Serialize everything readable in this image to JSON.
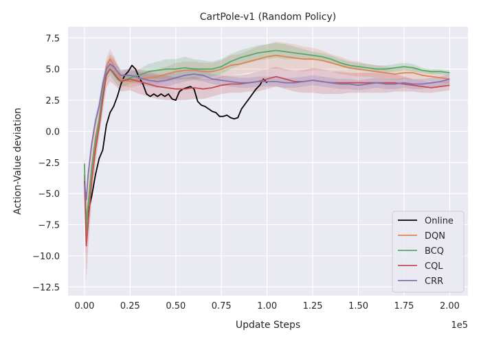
{
  "chart_data": {
    "type": "line",
    "title": "CartPole-v1 (Random Policy)",
    "xlabel": "Update Steps",
    "ylabel": "Action-Value deviation",
    "x_offset_label": "1e5",
    "xlim": [
      -0.09,
      2.1
    ],
    "ylim": [
      -13.2,
      8.4
    ],
    "x_ticks": [
      0.0,
      0.25,
      0.5,
      0.75,
      1.0,
      1.25,
      1.5,
      1.75,
      2.0
    ],
    "x_tick_labels": [
      "0.00",
      "0.25",
      "0.50",
      "0.75",
      "1.00",
      "1.25",
      "1.50",
      "1.75",
      "2.00"
    ],
    "y_ticks": [
      7.5,
      5.0,
      2.5,
      0.0,
      -2.5,
      -5.0,
      -7.5,
      -10.0,
      -12.5
    ],
    "y_tick_labels": [
      "7.5",
      "5.0",
      "2.5",
      "0.0",
      "−2.5",
      "−5.0",
      "−7.5",
      "−10.0",
      "−12.5"
    ],
    "grid": true,
    "legend_position": "bottom-right",
    "colors": {
      "background": "#eaeaf2",
      "grid": "#ffffff",
      "Online": "#000000",
      "DQN": "#dd8452",
      "BCQ": "#55a868",
      "CQL": "#c44e52",
      "CRR": "#8172b3"
    },
    "series": [
      {
        "name": "Online",
        "x": [
          0.0,
          0.01,
          0.02,
          0.04,
          0.06,
          0.08,
          0.1,
          0.12,
          0.14,
          0.16,
          0.18,
          0.2,
          0.22,
          0.24,
          0.26,
          0.28,
          0.3,
          0.32,
          0.34,
          0.36,
          0.38,
          0.4,
          0.42,
          0.44,
          0.46,
          0.48,
          0.5,
          0.52,
          0.54,
          0.56,
          0.58,
          0.6,
          0.62,
          0.64,
          0.66,
          0.68,
          0.7,
          0.72,
          0.74,
          0.76,
          0.78,
          0.8,
          0.82,
          0.84,
          0.86,
          0.88,
          0.9,
          0.92,
          0.94,
          0.96,
          0.98,
          1.0
        ],
        "y": [
          -3.5,
          -7.5,
          -6.5,
          -5.2,
          -3.5,
          -2.2,
          -1.5,
          0.5,
          1.5,
          2.0,
          2.8,
          3.8,
          4.5,
          4.8,
          5.3,
          5.0,
          4.3,
          3.8,
          3.0,
          2.8,
          3.0,
          2.8,
          3.0,
          2.8,
          3.0,
          2.6,
          2.5,
          3.2,
          3.4,
          3.5,
          3.6,
          3.4,
          2.4,
          2.1,
          2.0,
          1.8,
          1.6,
          1.5,
          1.2,
          1.2,
          1.3,
          1.1,
          1.0,
          1.1,
          1.8,
          2.2,
          2.6,
          3.0,
          3.4,
          3.7,
          4.2,
          3.9
        ]
      },
      {
        "name": "DQN",
        "x": [
          0.0,
          0.01,
          0.02,
          0.04,
          0.06,
          0.08,
          0.1,
          0.12,
          0.14,
          0.16,
          0.18,
          0.2,
          0.25,
          0.3,
          0.35,
          0.4,
          0.45,
          0.5,
          0.55,
          0.6,
          0.65,
          0.7,
          0.75,
          0.8,
          0.85,
          0.9,
          0.95,
          1.0,
          1.05,
          1.1,
          1.15,
          1.2,
          1.25,
          1.3,
          1.35,
          1.4,
          1.45,
          1.5,
          1.55,
          1.6,
          1.65,
          1.7,
          1.75,
          1.8,
          1.85,
          1.9,
          1.95,
          2.0
        ],
        "y": [
          -3.5,
          -8.0,
          -6.0,
          -2.8,
          -0.5,
          1.0,
          3.2,
          5.2,
          5.8,
          5.3,
          4.8,
          4.2,
          4.0,
          4.2,
          4.3,
          4.4,
          4.6,
          4.8,
          4.9,
          4.9,
          4.8,
          4.8,
          5.0,
          5.3,
          5.4,
          5.6,
          5.8,
          6.0,
          6.1,
          6.0,
          5.9,
          5.8,
          5.8,
          5.7,
          5.5,
          5.3,
          5.1,
          5.0,
          4.9,
          4.8,
          4.7,
          4.6,
          4.7,
          4.7,
          4.5,
          4.4,
          4.3,
          4.2
        ],
        "lower": [
          -5.5,
          -10.0,
          -8.0,
          -4.2,
          -1.8,
          0.2,
          2.5,
          4.5,
          5.0,
          4.5,
          4.1,
          3.7,
          3.5,
          3.7,
          3.8,
          3.8,
          4.0,
          4.1,
          4.2,
          4.2,
          4.1,
          4.1,
          4.3,
          4.5,
          4.6,
          4.7,
          4.8,
          5.0,
          5.0,
          4.9,
          4.8,
          4.8,
          4.9,
          4.9,
          4.8,
          4.6,
          4.5,
          4.4,
          4.4,
          4.3,
          4.2,
          4.1,
          4.2,
          4.2,
          4.1,
          4.0,
          3.9,
          3.8
        ],
        "upper": [
          -1.5,
          -6.0,
          -4.0,
          -1.4,
          0.8,
          1.8,
          3.9,
          5.9,
          6.6,
          6.1,
          5.5,
          4.7,
          4.5,
          4.7,
          4.8,
          5.0,
          5.2,
          5.5,
          5.6,
          5.6,
          5.5,
          5.5,
          5.7,
          6.1,
          6.2,
          6.5,
          6.8,
          7.0,
          7.2,
          7.1,
          7.0,
          6.8,
          6.7,
          6.5,
          6.2,
          6.0,
          5.7,
          5.6,
          5.4,
          5.3,
          5.2,
          5.1,
          5.2,
          5.2,
          4.9,
          4.8,
          4.7,
          4.6
        ]
      },
      {
        "name": "BCQ",
        "x": [
          0.0,
          0.01,
          0.02,
          0.04,
          0.06,
          0.08,
          0.1,
          0.12,
          0.14,
          0.16,
          0.18,
          0.2,
          0.25,
          0.3,
          0.35,
          0.4,
          0.45,
          0.5,
          0.55,
          0.6,
          0.65,
          0.7,
          0.75,
          0.8,
          0.85,
          0.9,
          0.95,
          1.0,
          1.05,
          1.1,
          1.15,
          1.2,
          1.25,
          1.3,
          1.35,
          1.4,
          1.45,
          1.5,
          1.55,
          1.6,
          1.65,
          1.7,
          1.75,
          1.8,
          1.85,
          1.9,
          1.95,
          2.0
        ],
        "y": [
          -2.6,
          -8.0,
          -6.0,
          -3.0,
          -0.8,
          0.8,
          3.0,
          4.6,
          5.0,
          4.6,
          4.2,
          4.0,
          4.3,
          4.5,
          4.8,
          4.9,
          5.0,
          5.0,
          5.1,
          5.0,
          5.0,
          5.0,
          5.2,
          5.6,
          5.9,
          6.1,
          6.3,
          6.4,
          6.5,
          6.4,
          6.3,
          6.2,
          6.1,
          6.0,
          5.8,
          5.5,
          5.3,
          5.2,
          5.1,
          5.0,
          5.0,
          5.1,
          5.2,
          5.1,
          4.9,
          4.8,
          4.8,
          4.7
        ],
        "lower": [
          -3.2,
          -8.8,
          -6.8,
          -3.6,
          -1.4,
          0.3,
          2.5,
          4.1,
          4.5,
          4.1,
          3.7,
          3.5,
          3.8,
          4.0,
          4.2,
          4.2,
          4.2,
          4.2,
          4.2,
          4.2,
          4.3,
          4.4,
          4.6,
          5.0,
          5.3,
          5.5,
          5.7,
          5.8,
          5.9,
          5.8,
          5.8,
          5.8,
          5.8,
          5.7,
          5.5,
          5.2,
          5.0,
          4.9,
          4.8,
          4.7,
          4.7,
          4.8,
          4.9,
          4.8,
          4.7,
          4.6,
          4.6,
          4.5
        ],
        "upper": [
          -2.0,
          -7.2,
          -5.2,
          -2.4,
          -0.2,
          1.3,
          3.5,
          5.1,
          5.5,
          5.1,
          4.7,
          4.5,
          4.8,
          5.0,
          5.4,
          5.6,
          5.8,
          5.8,
          6.0,
          5.8,
          5.7,
          5.6,
          5.8,
          6.2,
          6.5,
          6.7,
          6.9,
          7.0,
          7.1,
          7.0,
          6.8,
          6.6,
          6.4,
          6.3,
          6.1,
          5.8,
          5.6,
          5.5,
          5.4,
          5.3,
          5.3,
          5.4,
          5.5,
          5.4,
          5.1,
          5.0,
          5.0,
          4.9
        ]
      },
      {
        "name": "CQL",
        "x": [
          0.0,
          0.01,
          0.02,
          0.04,
          0.06,
          0.08,
          0.1,
          0.12,
          0.14,
          0.16,
          0.18,
          0.2,
          0.25,
          0.3,
          0.35,
          0.4,
          0.45,
          0.5,
          0.55,
          0.6,
          0.65,
          0.7,
          0.75,
          0.8,
          0.85,
          0.9,
          0.95,
          1.0,
          1.05,
          1.1,
          1.15,
          1.2,
          1.25,
          1.3,
          1.35,
          1.4,
          1.45,
          1.5,
          1.55,
          1.6,
          1.65,
          1.7,
          1.75,
          1.8,
          1.85,
          1.9,
          1.95,
          2.0
        ],
        "y": [
          -4.0,
          -9.2,
          -7.5,
          -4.0,
          -1.5,
          0.3,
          2.5,
          4.5,
          5.0,
          4.7,
          4.3,
          4.0,
          4.2,
          4.0,
          3.8,
          3.6,
          3.5,
          3.4,
          3.4,
          3.5,
          3.4,
          3.5,
          3.7,
          3.8,
          3.8,
          3.9,
          4.0,
          4.2,
          4.4,
          4.2,
          4.0,
          4.0,
          4.1,
          4.0,
          3.9,
          3.9,
          3.9,
          3.9,
          3.9,
          3.9,
          3.9,
          3.9,
          3.8,
          3.7,
          3.6,
          3.5,
          3.6,
          3.7
        ],
        "lower": [
          -6.0,
          -12.0,
          -9.5,
          -5.5,
          -2.8,
          -0.5,
          1.5,
          3.5,
          4.0,
          3.8,
          3.5,
          3.2,
          3.3,
          3.0,
          2.8,
          2.6,
          2.5,
          2.5,
          2.5,
          2.6,
          2.6,
          2.8,
          3.0,
          3.1,
          3.1,
          3.2,
          3.2,
          3.4,
          3.6,
          3.4,
          3.2,
          3.1,
          3.1,
          3.0,
          3.0,
          3.0,
          3.1,
          3.1,
          3.1,
          3.1,
          3.1,
          3.2,
          3.2,
          3.2,
          3.1,
          3.1,
          3.2,
          3.3
        ],
        "upper": [
          -2.0,
          -6.4,
          -5.5,
          -2.5,
          -0.2,
          1.1,
          3.5,
          5.5,
          6.2,
          5.9,
          5.3,
          4.8,
          5.1,
          5.0,
          4.8,
          4.6,
          4.5,
          4.3,
          4.3,
          4.4,
          4.2,
          4.2,
          4.4,
          4.5,
          4.5,
          4.6,
          4.8,
          5.0,
          5.2,
          5.0,
          4.8,
          4.9,
          5.1,
          5.0,
          4.8,
          4.8,
          4.7,
          4.7,
          4.7,
          4.7,
          4.7,
          4.6,
          4.4,
          4.2,
          4.1,
          3.9,
          4.0,
          4.1
        ]
      },
      {
        "name": "CRR",
        "x": [
          0.0,
          0.01,
          0.02,
          0.04,
          0.06,
          0.08,
          0.1,
          0.12,
          0.14,
          0.16,
          0.18,
          0.2,
          0.25,
          0.3,
          0.35,
          0.4,
          0.45,
          0.5,
          0.55,
          0.6,
          0.65,
          0.7,
          0.75,
          0.8,
          0.85,
          0.9,
          0.95,
          1.0,
          1.05,
          1.1,
          1.15,
          1.2,
          1.25,
          1.3,
          1.35,
          1.4,
          1.45,
          1.5,
          1.55,
          1.6,
          1.65,
          1.7,
          1.75,
          1.8,
          1.85,
          1.9,
          1.95,
          2.0
        ],
        "y": [
          -4.2,
          -5.5,
          -3.5,
          -1.0,
          0.8,
          2.0,
          3.8,
          5.0,
          5.4,
          5.2,
          4.8,
          4.5,
          4.5,
          4.3,
          4.1,
          4.0,
          4.1,
          4.3,
          4.5,
          4.6,
          4.5,
          4.2,
          4.1,
          4.0,
          3.9,
          3.9,
          4.0,
          4.0,
          4.0,
          3.9,
          3.9,
          4.0,
          4.1,
          4.0,
          3.9,
          3.8,
          3.8,
          3.7,
          3.8,
          3.9,
          3.8,
          3.8,
          3.9,
          3.8,
          3.8,
          3.9,
          4.0,
          4.2
        ],
        "lower": [
          -4.8,
          -6.2,
          -4.1,
          -1.5,
          0.3,
          1.5,
          3.3,
          4.5,
          4.9,
          4.7,
          4.3,
          4.0,
          4.0,
          3.8,
          3.6,
          3.5,
          3.6,
          3.8,
          4.0,
          4.1,
          4.0,
          3.8,
          3.7,
          3.6,
          3.5,
          3.5,
          3.6,
          3.6,
          3.6,
          3.5,
          3.5,
          3.6,
          3.7,
          3.6,
          3.5,
          3.4,
          3.4,
          3.3,
          3.4,
          3.5,
          3.4,
          3.4,
          3.5,
          3.4,
          3.4,
          3.5,
          3.6,
          3.8
        ],
        "upper": [
          -3.6,
          -4.8,
          -2.9,
          -0.5,
          1.3,
          2.5,
          4.3,
          5.5,
          5.9,
          5.7,
          5.3,
          5.0,
          5.0,
          4.8,
          4.6,
          4.5,
          4.6,
          4.8,
          5.0,
          5.1,
          5.0,
          4.6,
          4.5,
          4.4,
          4.3,
          4.3,
          4.4,
          4.4,
          4.4,
          4.3,
          4.3,
          4.4,
          4.5,
          4.4,
          4.3,
          4.2,
          4.2,
          4.1,
          4.2,
          4.3,
          4.2,
          4.2,
          4.3,
          4.2,
          4.2,
          4.3,
          4.4,
          4.6
        ]
      }
    ]
  }
}
